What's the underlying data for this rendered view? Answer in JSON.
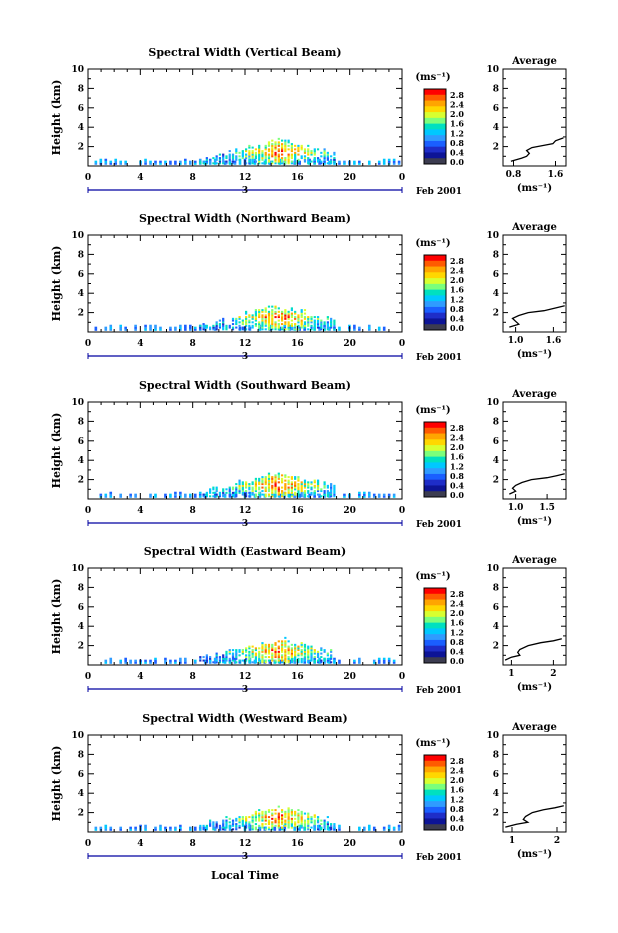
{
  "colors": {
    "colormap": [
      "#ff0000",
      "#ff5a00",
      "#ffa500",
      "#ffd700",
      "#d8ff30",
      "#7bff7b",
      "#00e0c0",
      "#00c8ff",
      "#2f9bff",
      "#1a5fff",
      "#1e2dc8",
      "#0d1496",
      "#3c3c50"
    ],
    "axis": "#000000",
    "background": "#ffffff"
  },
  "shared": {
    "x_ticks": [
      "0",
      "4",
      "8",
      "12",
      "16",
      "20",
      "0"
    ],
    "date_label": "Feb 2001",
    "day_label": "3",
    "y_label": "Height (km)",
    "y_ticks": [
      "10",
      "8",
      "6",
      "4",
      "2"
    ],
    "colorbar_unit": "(ms⁻¹)",
    "colorbar_ticks": [
      "2.8",
      "2.4",
      "2.0",
      "1.6",
      "1.2",
      "0.8",
      "0.4",
      "0.0"
    ],
    "avg_title": "Average",
    "avg_xlabel": "(ms⁻¹)",
    "x_axis_label": "Local Time"
  },
  "chart_data": [
    {
      "type": "heatmap",
      "title": "Spectral Width (Vertical Beam)",
      "xlabel": "",
      "ylabel": "Height (km)",
      "xlim": [
        0,
        24
      ],
      "ylim": [
        0,
        10
      ],
      "colorbar_range": [
        0.0,
        2.8
      ],
      "average": {
        "type": "line",
        "title": "Average",
        "xticks": [
          "0.8",
          "1.6"
        ],
        "xlim": [
          0.6,
          1.8
        ],
        "profile": [
          [
            0.75,
            0.5
          ],
          [
            0.95,
            0.8
          ],
          [
            1.05,
            1.0
          ],
          [
            1.1,
            1.3
          ],
          [
            1.05,
            1.6
          ],
          [
            1.15,
            1.9
          ],
          [
            1.35,
            2.1
          ],
          [
            1.55,
            2.3
          ],
          [
            1.6,
            2.6
          ],
          [
            1.75,
            2.9
          ]
        ]
      }
    },
    {
      "type": "heatmap",
      "title": "Spectral Width (Northward Beam)",
      "xlabel": "",
      "ylabel": "Height (km)",
      "xlim": [
        0,
        24
      ],
      "ylim": [
        0,
        10
      ],
      "colorbar_range": [
        0.0,
        2.8
      ],
      "average": {
        "type": "line",
        "title": "Average",
        "xticks": [
          "1.0",
          "1.6"
        ],
        "xlim": [
          0.8,
          1.8
        ],
        "profile": [
          [
            0.9,
            0.5
          ],
          [
            1.05,
            0.8
          ],
          [
            1.0,
            1.1
          ],
          [
            0.95,
            1.4
          ],
          [
            1.05,
            1.7
          ],
          [
            1.2,
            2.0
          ],
          [
            1.45,
            2.2
          ],
          [
            1.65,
            2.5
          ],
          [
            1.78,
            2.7
          ]
        ]
      }
    },
    {
      "type": "heatmap",
      "title": "Spectral Width (Southward Beam)",
      "xlabel": "",
      "ylabel": "Height (km)",
      "xlim": [
        0,
        24
      ],
      "ylim": [
        0,
        10
      ],
      "colorbar_range": [
        0.0,
        2.8
      ],
      "average": {
        "type": "line",
        "title": "Average",
        "xticks": [
          "1.0",
          "1.5"
        ],
        "xlim": [
          0.8,
          1.8
        ],
        "profile": [
          [
            0.9,
            0.5
          ],
          [
            1.0,
            0.8
          ],
          [
            0.95,
            1.1
          ],
          [
            1.0,
            1.4
          ],
          [
            1.1,
            1.7
          ],
          [
            1.25,
            2.0
          ],
          [
            1.5,
            2.2
          ],
          [
            1.65,
            2.4
          ],
          [
            1.78,
            2.6
          ]
        ]
      }
    },
    {
      "type": "heatmap",
      "title": "Spectral Width (Eastward Beam)",
      "xlabel": "",
      "ylabel": "Height (km)",
      "xlim": [
        0,
        24
      ],
      "ylim": [
        0,
        10
      ],
      "colorbar_range": [
        0.0,
        2.8
      ],
      "average": {
        "type": "line",
        "title": "Average",
        "xticks": [
          "1",
          "2"
        ],
        "xlim": [
          0.8,
          2.3
        ],
        "profile": [
          [
            0.85,
            0.5
          ],
          [
            1.0,
            0.8
          ],
          [
            1.2,
            1.0
          ],
          [
            1.15,
            1.3
          ],
          [
            1.2,
            1.6
          ],
          [
            1.4,
            2.0
          ],
          [
            1.7,
            2.3
          ],
          [
            2.0,
            2.5
          ],
          [
            2.2,
            2.7
          ]
        ]
      }
    },
    {
      "type": "heatmap",
      "title": "Spectral Width (Westward Beam)",
      "xlabel": "",
      "ylabel": "Height (km)",
      "xlim": [
        0,
        24
      ],
      "ylim": [
        0,
        10
      ],
      "colorbar_range": [
        0.0,
        2.8
      ],
      "average": {
        "type": "line",
        "title": "Average",
        "xticks": [
          "1",
          "2"
        ],
        "xlim": [
          0.8,
          2.2
        ],
        "profile": [
          [
            0.85,
            0.5
          ],
          [
            1.1,
            0.8
          ],
          [
            1.35,
            1.0
          ],
          [
            1.25,
            1.3
          ],
          [
            1.3,
            1.6
          ],
          [
            1.45,
            2.0
          ],
          [
            1.7,
            2.3
          ],
          [
            1.95,
            2.5
          ],
          [
            2.15,
            2.7
          ]
        ]
      }
    }
  ]
}
